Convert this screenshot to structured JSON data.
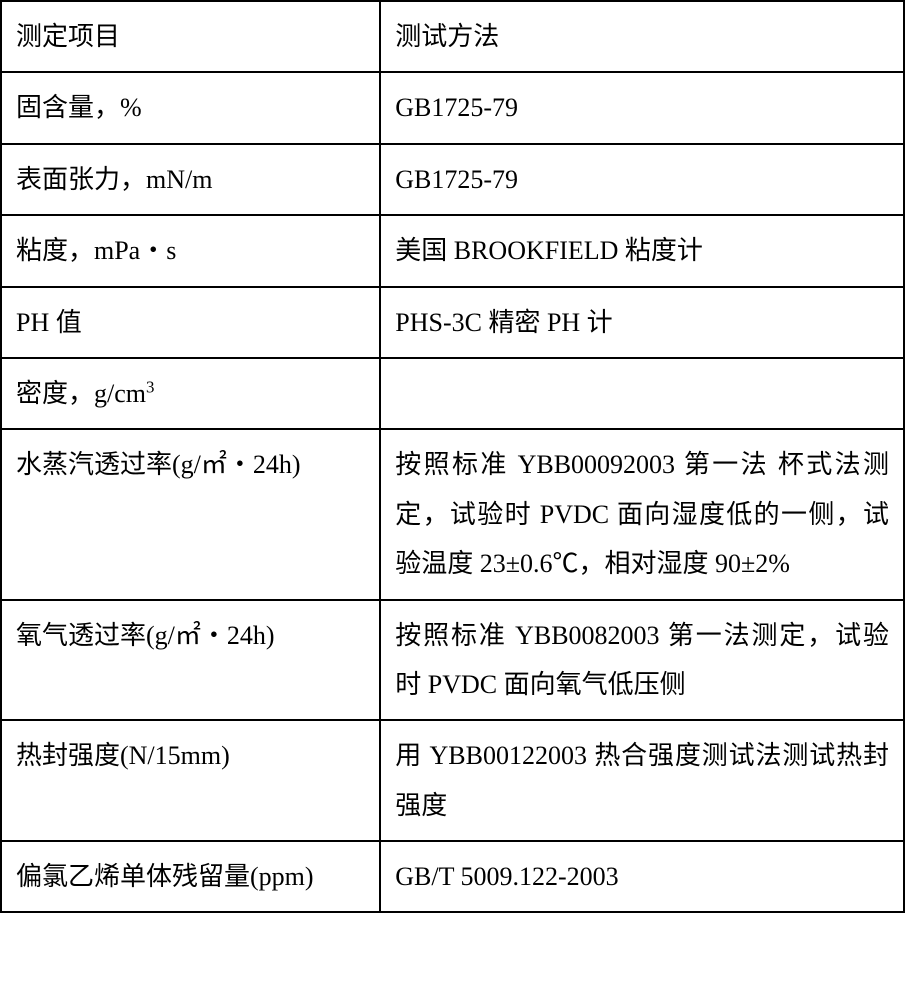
{
  "table": {
    "border_color": "#000000",
    "border_width": 2,
    "background_color": "#ffffff",
    "text_color": "#000000",
    "font_size": 26,
    "font_family_cjk": "SimSun",
    "font_family_latin": "Times New Roman",
    "line_height": 1.9,
    "col1_width_pct": 42,
    "col2_width_pct": 58,
    "header": {
      "col1": "测定项目",
      "col2": "测试方法"
    },
    "rows": [
      {
        "item": "固含量，%",
        "method": "GB1725-79"
      },
      {
        "item": "表面张力，mN/m",
        "method": "GB1725-79"
      },
      {
        "item": "粘度，mPa・s",
        "method": "美国 BROOKFIELD 粘度计"
      },
      {
        "item": "PH 值",
        "method": "PHS-3C 精密 PH 计"
      },
      {
        "item_html": "密度，g/cm<sup>3</sup>",
        "item_plain": "密度，g/cm3",
        "method": ""
      },
      {
        "item": "水蒸汽透过率(g/㎡・24h)",
        "method": "按照标准 YBB00092003 第一法 杯式法测定，试验时 PVDC 面向湿度低的一侧，试验温度 23±0.6℃，相对湿度 90±2%",
        "justify": true
      },
      {
        "item": "氧气透过率(g/㎡・24h)",
        "method": "按照标准 YBB0082003 第一法测定，试验时 PVDC 面向氧气低压侧",
        "justify": true
      },
      {
        "item": "热封强度(N/15mm)",
        "method": "用 YBB00122003 热合强度测试法测试热封强度",
        "justify": true
      },
      {
        "item": "偏氯乙烯单体残留量(ppm)",
        "method": "GB/T  5009.122-2003"
      }
    ]
  }
}
